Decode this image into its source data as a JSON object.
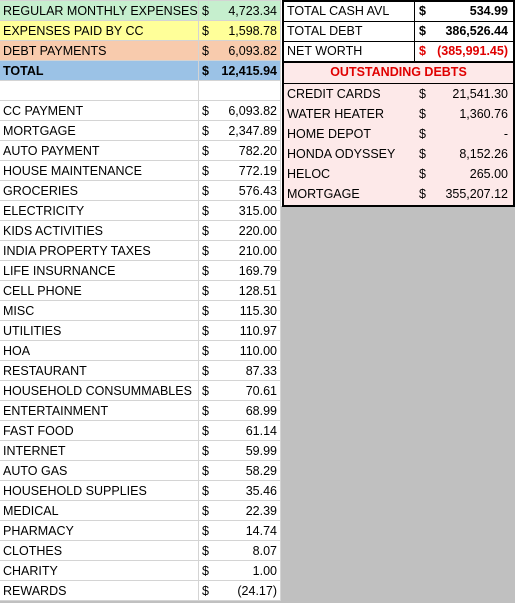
{
  "colors": {
    "regular_bg": "#c6efce",
    "cc_bg": "#ffff99",
    "debt_bg": "#f8cbad",
    "total_bg": "#9bc2e6",
    "debts_panel_bg": "#fde9e9",
    "gray_area": "#c0c0c0",
    "negative_text": "#e00000"
  },
  "summary": [
    {
      "label": "REGULAR MONTHLY EXPENSES",
      "currency": "$",
      "amount": "4,723.34"
    },
    {
      "label": "EXPENSES PAID BY CC",
      "currency": "$",
      "amount": "1,598.78"
    },
    {
      "label": "DEBT PAYMENTS",
      "currency": "$",
      "amount": "6,093.82"
    },
    {
      "label": "TOTAL",
      "currency": "$",
      "amount": "12,415.94"
    }
  ],
  "expenses": [
    {
      "label": "CC PAYMENT",
      "currency": "$",
      "amount": "6,093.82"
    },
    {
      "label": "MORTGAGE",
      "currency": "$",
      "amount": "2,347.89"
    },
    {
      "label": "AUTO PAYMENT",
      "currency": "$",
      "amount": "782.20"
    },
    {
      "label": "HOUSE MAINTENANCE",
      "currency": "$",
      "amount": "772.19"
    },
    {
      "label": "GROCERIES",
      "currency": "$",
      "amount": "576.43"
    },
    {
      "label": "ELECTRICITY",
      "currency": "$",
      "amount": "315.00"
    },
    {
      "label": "KIDS ACTIVITIES",
      "currency": "$",
      "amount": "220.00"
    },
    {
      "label": "INDIA PROPERTY TAXES",
      "currency": "$",
      "amount": "210.00"
    },
    {
      "label": "LIFE INSURNANCE",
      "currency": "$",
      "amount": "169.79"
    },
    {
      "label": "CELL PHONE",
      "currency": "$",
      "amount": "128.51"
    },
    {
      "label": "MISC",
      "currency": "$",
      "amount": "115.30"
    },
    {
      "label": "UTILITIES",
      "currency": "$",
      "amount": "110.97"
    },
    {
      "label": "HOA",
      "currency": "$",
      "amount": "110.00"
    },
    {
      "label": "RESTAURANT",
      "currency": "$",
      "amount": "87.33"
    },
    {
      "label": "HOUSEHOLD CONSUMMABLES",
      "currency": "$",
      "amount": "70.61"
    },
    {
      "label": "ENTERTAINMENT",
      "currency": "$",
      "amount": "68.99"
    },
    {
      "label": "FAST FOOD",
      "currency": "$",
      "amount": "61.14"
    },
    {
      "label": "INTERNET",
      "currency": "$",
      "amount": "59.99"
    },
    {
      "label": "AUTO GAS",
      "currency": "$",
      "amount": "58.29"
    },
    {
      "label": "HOUSEHOLD SUPPLIES",
      "currency": "$",
      "amount": "35.46"
    },
    {
      "label": "MEDICAL",
      "currency": "$",
      "amount": "22.39"
    },
    {
      "label": "PHARMACY",
      "currency": "$",
      "amount": "14.74"
    },
    {
      "label": "CLOTHES",
      "currency": "$",
      "amount": "8.07"
    },
    {
      "label": "CHARITY",
      "currency": "$",
      "amount": "1.00"
    },
    {
      "label": "REWARDS",
      "currency": "$",
      "amount": "(24.17)"
    }
  ],
  "totals": [
    {
      "label": "TOTAL CASH AVL",
      "currency": "$",
      "amount": "534.99"
    },
    {
      "label": "TOTAL DEBT",
      "currency": "$",
      "amount": "386,526.44"
    },
    {
      "label": "NET WORTH",
      "currency": "$",
      "amount": "(385,991.45)"
    }
  ],
  "debts_header": "OUTSTANDING DEBTS",
  "debts": [
    {
      "label": "CREDIT CARDS",
      "currency": "$",
      "amount": "21,541.30"
    },
    {
      "label": "WATER HEATER",
      "currency": "$",
      "amount": "1,360.76"
    },
    {
      "label": "HOME DEPOT",
      "currency": "$",
      "amount": "-"
    },
    {
      "label": "HONDA ODYSSEY",
      "currency": "$",
      "amount": "8,152.26"
    },
    {
      "label": "HELOC",
      "currency": "$",
      "amount": "265.00"
    },
    {
      "label": "MORTGAGE",
      "currency": "$",
      "amount": "355,207.12"
    }
  ]
}
